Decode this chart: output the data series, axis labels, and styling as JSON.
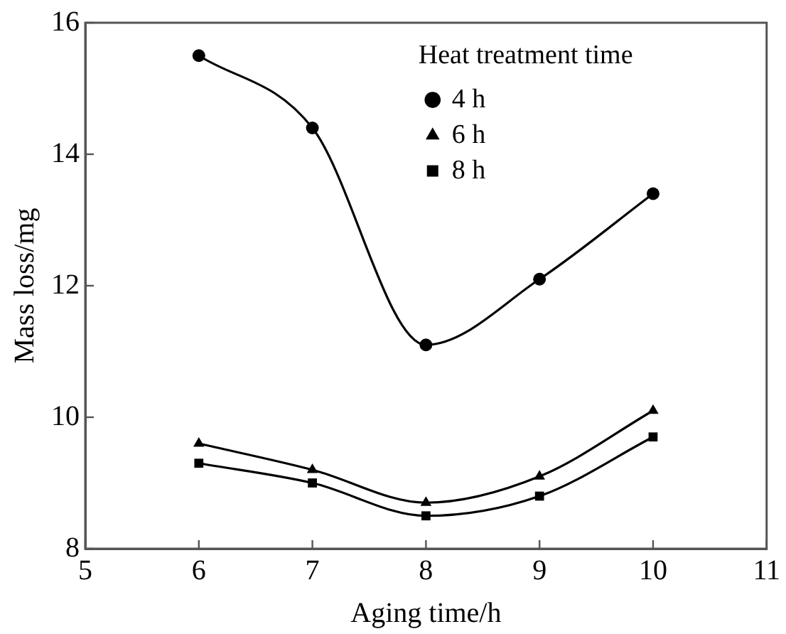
{
  "chart_data": {
    "type": "line",
    "xlabel": "Aging time/h",
    "ylabel": "Mass loss/mg",
    "legend_title": "Heat treatment time",
    "x": [
      6,
      7,
      8,
      9,
      10
    ],
    "series": [
      {
        "name": "4 h",
        "color": "#000000",
        "marker": "circle",
        "values": [
          15.5,
          14.4,
          11.1,
          12.1,
          13.4
        ]
      },
      {
        "name": "6 h",
        "color": "#000000",
        "marker": "triangle",
        "values": [
          9.6,
          9.2,
          8.7,
          9.1,
          10.1
        ]
      },
      {
        "name": "8 h",
        "color": "#000000",
        "marker": "square",
        "values": [
          9.3,
          9.0,
          8.5,
          8.8,
          9.7
        ]
      }
    ],
    "xlim": [
      5,
      11
    ],
    "xticks": [
      5,
      6,
      7,
      8,
      9,
      10,
      11
    ],
    "ylim": [
      8,
      16
    ],
    "yticks": [
      8,
      10,
      12,
      14,
      16
    ],
    "grid": false,
    "legend": "top right",
    "line_style": "solid"
  }
}
